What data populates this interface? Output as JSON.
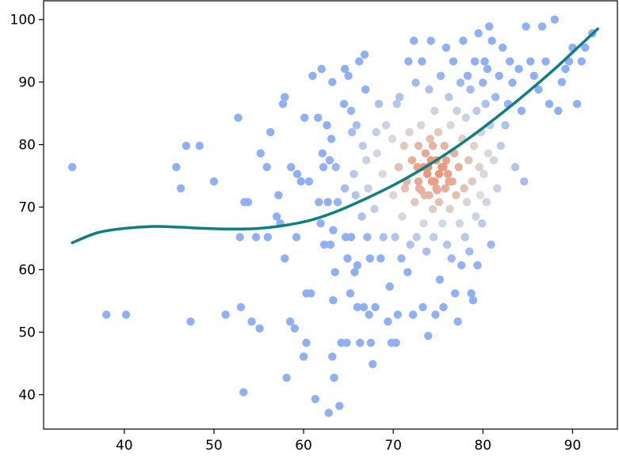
{
  "chart_data": {
    "type": "scatter",
    "title": "",
    "xlabel": "",
    "ylabel": "",
    "xlim": [
      31,
      95
    ],
    "ylim": [
      34.5,
      103
    ],
    "xticks": [
      40,
      50,
      60,
      70,
      80,
      90
    ],
    "yticks": [
      40,
      50,
      60,
      70,
      80,
      90,
      100
    ],
    "x_tick_labels": [
      "40",
      "50",
      "60",
      "70",
      "80",
      "90"
    ],
    "y_tick_labels": [
      "40",
      "50",
      "60",
      "70",
      "80",
      "90",
      "100"
    ],
    "grid": false,
    "legend": "none",
    "point_color_scale": {
      "low": "#8fb0f5",
      "mid": "#dcdcdc",
      "high": "#f08a6a"
    },
    "trend_color": "#0e7f80",
    "points": [
      [
        34.2,
        76.4
      ],
      [
        38.0,
        52.8
      ],
      [
        40.2,
        52.8
      ],
      [
        45.8,
        76.4
      ],
      [
        46.3,
        73.0
      ],
      [
        46.9,
        79.8
      ],
      [
        47.4,
        51.7
      ],
      [
        48.4,
        79.8
      ],
      [
        50.0,
        74.1
      ],
      [
        51.3,
        52.8
      ],
      [
        52.7,
        84.3
      ],
      [
        52.9,
        65.2
      ],
      [
        53.0,
        54.0
      ],
      [
        53.3,
        40.4
      ],
      [
        53.4,
        70.8
      ],
      [
        53.8,
        70.8
      ],
      [
        54.2,
        51.7
      ],
      [
        54.7,
        65.2
      ],
      [
        55.1,
        50.6
      ],
      [
        55.2,
        78.6
      ],
      [
        55.9,
        76.4
      ],
      [
        56.0,
        65.2
      ],
      [
        56.3,
        82.0
      ],
      [
        57.0,
        68.5
      ],
      [
        57.2,
        71.9
      ],
      [
        57.4,
        67.4
      ],
      [
        57.7,
        86.5
      ],
      [
        57.9,
        87.6
      ],
      [
        57.9,
        61.8
      ],
      [
        58.1,
        42.7
      ],
      [
        58.5,
        51.7
      ],
      [
        58.6,
        76.4
      ],
      [
        59.0,
        50.6
      ],
      [
        59.2,
        65.2
      ],
      [
        59.3,
        75.3
      ],
      [
        59.7,
        74.1
      ],
      [
        60.0,
        46.1
      ],
      [
        60.1,
        84.3
      ],
      [
        60.3,
        48.3
      ],
      [
        60.3,
        56.2
      ],
      [
        60.6,
        74.1
      ],
      [
        60.8,
        56.2
      ],
      [
        61.0,
        91.0
      ],
      [
        61.3,
        39.3
      ],
      [
        61.6,
        84.3
      ],
      [
        61.7,
        70.8
      ],
      [
        61.9,
        67.4
      ],
      [
        62.0,
        92.1
      ],
      [
        62.1,
        78.6
      ],
      [
        62.2,
        76.4
      ],
      [
        62.3,
        64.0
      ],
      [
        62.6,
        83.1
      ],
      [
        62.7,
        70.8
      ],
      [
        62.8,
        37.1
      ],
      [
        62.9,
        77.5
      ],
      [
        63.0,
        64.0
      ],
      [
        63.1,
        80.9
      ],
      [
        63.2,
        90.0
      ],
      [
        63.2,
        46.1
      ],
      [
        63.3,
        55.1
      ],
      [
        63.3,
        66.3
      ],
      [
        63.4,
        42.7
      ],
      [
        63.5,
        59.6
      ],
      [
        63.6,
        76.4
      ],
      [
        63.8,
        70.8
      ],
      [
        64.0,
        38.2
      ],
      [
        64.2,
        48.3
      ],
      [
        64.5,
        86.5
      ],
      [
        64.6,
        92.1
      ],
      [
        64.6,
        73.0
      ],
      [
        64.7,
        65.2
      ],
      [
        64.8,
        48.3
      ],
      [
        64.9,
        61.8
      ],
      [
        65.0,
        91.0
      ],
      [
        65.2,
        56.2
      ],
      [
        65.3,
        85.4
      ],
      [
        65.3,
        65.2
      ],
      [
        65.4,
        82.0
      ],
      [
        65.6,
        75.3
      ],
      [
        65.7,
        59.6
      ],
      [
        65.8,
        71.9
      ],
      [
        65.9,
        83.1
      ],
      [
        66.0,
        54.0
      ],
      [
        66.0,
        60.7
      ],
      [
        66.2,
        93.3
      ],
      [
        66.3,
        48.3
      ],
      [
        66.5,
        68.5
      ],
      [
        66.6,
        79.8
      ],
      [
        66.7,
        54.0
      ],
      [
        66.8,
        94.4
      ],
      [
        66.9,
        88.8
      ],
      [
        67.0,
        77.5
      ],
      [
        67.1,
        65.2
      ],
      [
        67.2,
        73.0
      ],
      [
        67.3,
        52.8
      ],
      [
        67.4,
        61.8
      ],
      [
        67.5,
        48.3
      ],
      [
        67.7,
        44.9
      ],
      [
        67.9,
        69.7
      ],
      [
        68.0,
        54.0
      ],
      [
        68.1,
        82.0
      ],
      [
        68.2,
        78.6
      ],
      [
        68.4,
        86.5
      ],
      [
        68.6,
        61.8
      ],
      [
        68.8,
        75.3
      ],
      [
        68.9,
        65.2
      ],
      [
        69.2,
        83.1
      ],
      [
        69.4,
        51.7
      ],
      [
        69.6,
        57.3
      ],
      [
        69.8,
        48.3
      ],
      [
        69.9,
        80.9
      ],
      [
        70.0,
        71.9
      ],
      [
        70.2,
        65.2
      ],
      [
        70.3,
        48.3
      ],
      [
        70.4,
        86.5
      ],
      [
        70.5,
        52.8
      ],
      [
        70.6,
        76.4
      ],
      [
        70.7,
        87.6
      ],
      [
        70.9,
        61.8
      ],
      [
        71.0,
        68.5
      ],
      [
        71.2,
        79.8
      ],
      [
        71.3,
        73.0
      ],
      [
        71.5,
        74.1
      ],
      [
        71.6,
        59.6
      ],
      [
        71.7,
        93.3
      ],
      [
        71.8,
        82.0
      ],
      [
        71.9,
        64.0
      ],
      [
        72.1,
        77.5
      ],
      [
        72.2,
        52.8
      ],
      [
        72.3,
        96.6
      ],
      [
        72.4,
        70.8
      ],
      [
        72.5,
        89.9
      ],
      [
        72.6,
        65.2
      ],
      [
        72.7,
        76.4
      ],
      [
        72.8,
        79.8
      ],
      [
        72.9,
        73.0
      ],
      [
        73.1,
        83.1
      ],
      [
        73.2,
        93.3
      ],
      [
        73.3,
        54.0
      ],
      [
        73.4,
        67.4
      ],
      [
        73.5,
        71.9
      ],
      [
        73.6,
        78.6
      ],
      [
        73.7,
        62.9
      ],
      [
        73.8,
        75.3
      ],
      [
        73.9,
        49.4
      ],
      [
        74.0,
        88.8
      ],
      [
        74.1,
        80.9
      ],
      [
        74.2,
        96.6
      ],
      [
        74.3,
        74.1
      ],
      [
        74.4,
        69.7
      ],
      [
        74.5,
        65.2
      ],
      [
        74.6,
        85.4
      ],
      [
        74.7,
        52.8
      ],
      [
        74.8,
        77.5
      ],
      [
        74.9,
        72.7
      ],
      [
        75.0,
        82.0
      ],
      [
        75.1,
        70.8
      ],
      [
        75.2,
        58.4
      ],
      [
        75.3,
        91.0
      ],
      [
        75.4,
        76.4
      ],
      [
        75.5,
        67.4
      ],
      [
        75.6,
        54.0
      ],
      [
        75.7,
        79.8
      ],
      [
        75.8,
        73.0
      ],
      [
        75.9,
        95.5
      ],
      [
        76.0,
        64.0
      ],
      [
        76.1,
        75.3
      ],
      [
        76.2,
        87.6
      ],
      [
        76.3,
        69.7
      ],
      [
        76.4,
        83.1
      ],
      [
        76.5,
        61.8
      ],
      [
        76.6,
        74.1
      ],
      [
        76.7,
        93.3
      ],
      [
        76.8,
        78.6
      ],
      [
        76.9,
        56.2
      ],
      [
        77.0,
        71.9
      ],
      [
        77.1,
        85.4
      ],
      [
        77.2,
        51.7
      ],
      [
        77.3,
        76.4
      ],
      [
        77.4,
        67.4
      ],
      [
        77.5,
        89.9
      ],
      [
        77.6,
        60.7
      ],
      [
        77.7,
        80.9
      ],
      [
        77.8,
        96.6
      ],
      [
        77.9,
        73.0
      ],
      [
        78.0,
        65.2
      ],
      [
        78.1,
        84.3
      ],
      [
        78.2,
        70.8
      ],
      [
        78.3,
        91.0
      ],
      [
        78.4,
        77.5
      ],
      [
        78.5,
        62.9
      ],
      [
        78.6,
        88.8
      ],
      [
        78.7,
        56.2
      ],
      [
        78.8,
        74.1
      ],
      [
        78.9,
        55.1
      ],
      [
        79.0,
        79.8
      ],
      [
        79.1,
        93.3
      ],
      [
        79.2,
        68.5
      ],
      [
        79.3,
        85.4
      ],
      [
        79.4,
        60.7
      ],
      [
        79.5,
        97.8
      ],
      [
        79.6,
        76.4
      ],
      [
        79.7,
        71.9
      ],
      [
        79.8,
        82.0
      ],
      [
        79.9,
        67.4
      ],
      [
        80.0,
        89.9
      ],
      [
        80.1,
        75.3
      ],
      [
        80.2,
        93.3
      ],
      [
        80.3,
        86.5
      ],
      [
        80.4,
        70.8
      ],
      [
        80.5,
        92.1
      ],
      [
        80.6,
        78.6
      ],
      [
        80.7,
        98.9
      ],
      [
        80.8,
        83.1
      ],
      [
        80.9,
        64.0
      ],
      [
        81.0,
        96.6
      ],
      [
        81.2,
        77.5
      ],
      [
        81.4,
        87.6
      ],
      [
        81.6,
        73.0
      ],
      [
        81.8,
        91.0
      ],
      [
        82.0,
        79.8
      ],
      [
        82.2,
        95.5
      ],
      [
        82.5,
        83.1
      ],
      [
        82.8,
        86.5
      ],
      [
        83.0,
        93.3
      ],
      [
        83.3,
        89.9
      ],
      [
        83.6,
        76.4
      ],
      [
        84.0,
        92.1
      ],
      [
        84.3,
        85.4
      ],
      [
        84.6,
        74.1
      ],
      [
        84.8,
        98.9
      ],
      [
        85.3,
        93.3
      ],
      [
        85.7,
        91.0
      ],
      [
        86.2,
        88.8
      ],
      [
        86.6,
        98.9
      ],
      [
        87.0,
        93.3
      ],
      [
        87.4,
        86.5
      ],
      [
        88.0,
        100.0
      ],
      [
        88.4,
        85.4
      ],
      [
        88.8,
        90.0
      ],
      [
        89.2,
        92.1
      ],
      [
        89.6,
        93.3
      ],
      [
        90.0,
        95.5
      ],
      [
        90.5,
        86.5
      ],
      [
        91.0,
        93.3
      ],
      [
        91.4,
        95.5
      ],
      [
        92.2,
        97.8
      ],
      [
        73.9,
        76.4
      ],
      [
        74.6,
        74.1
      ],
      [
        75.1,
        75.3
      ],
      [
        73.4,
        76.4
      ],
      [
        74.2,
        77.5
      ],
      [
        75.6,
        76.4
      ],
      [
        74.8,
        73.0
      ],
      [
        72.8,
        74.1
      ],
      [
        76.2,
        74.1
      ],
      [
        73.1,
        72.7
      ],
      [
        75.9,
        77.5
      ],
      [
        74.4,
        79.8
      ],
      [
        74.0,
        71.9
      ]
    ],
    "trend_line": {
      "x": [
        34.2,
        37.0,
        40.0,
        43.0,
        46.0,
        49.0,
        52.0,
        55.0,
        58.0,
        61.0,
        64.0,
        67.0,
        70.0,
        73.0,
        76.0,
        79.0,
        82.0,
        85.0,
        88.0,
        91.0,
        92.8
      ],
      "y": [
        64.3,
        65.9,
        66.6,
        66.9,
        66.8,
        66.6,
        66.5,
        66.6,
        67.1,
        68.0,
        69.5,
        71.4,
        73.5,
        75.9,
        78.6,
        81.6,
        84.9,
        88.4,
        92.1,
        96.1,
        98.5
      ]
    }
  }
}
